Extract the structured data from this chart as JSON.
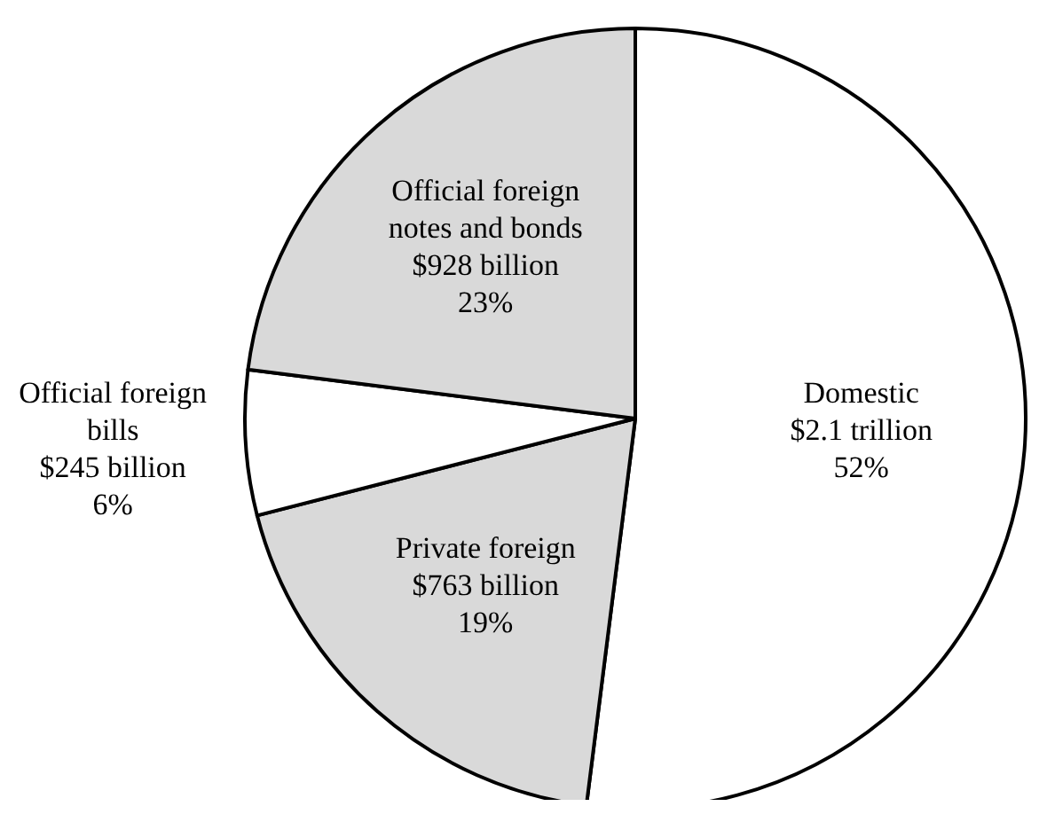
{
  "chart_data": {
    "type": "pie",
    "categories": [
      "Domestic",
      "Private foreign",
      "Official foreign\nbills",
      "Official foreign\nnotes and bonds"
    ],
    "values": [
      52,
      19,
      6,
      23
    ],
    "colors": [
      "#ffffff",
      "#d9d9d9",
      "#ffffff",
      "#d9d9d9"
    ],
    "value_labels": [
      "$2.1 trillion\n52%",
      "$763 billion\n19%",
      "$245 billion\n6%",
      "$928 billion\n23%"
    ]
  }
}
